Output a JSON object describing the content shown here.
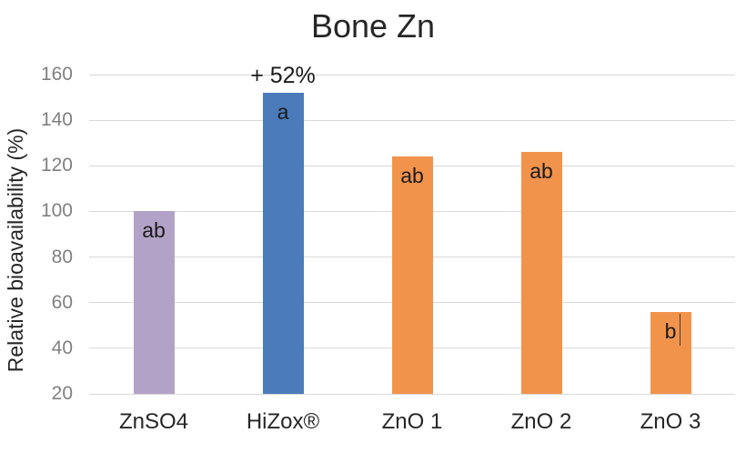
{
  "chart_data": {
    "type": "bar",
    "title": "Bone Zn",
    "xlabel": "",
    "ylabel": "Relative bioavailability (%)",
    "categories": [
      "ZnSO4",
      "HiZox®",
      "ZnO 1",
      "ZnO 2",
      "ZnO 3"
    ],
    "values": [
      100,
      152,
      124,
      126,
      56
    ],
    "bar_colors": [
      "#b3a2c7",
      "#4b7bba",
      "#f2934c",
      "#f2934c",
      "#f2934c"
    ],
    "significance_letters": [
      "ab",
      "a",
      "ab",
      "ab",
      "b"
    ],
    "annotations": [
      {
        "target": "HiZox®",
        "text": "+ 52%",
        "position": "above-bar"
      }
    ],
    "text_cursor_artifact": {
      "target": "ZnO 3",
      "visible": true
    },
    "ylim": [
      20,
      160
    ],
    "yticks": [
      20,
      40,
      60,
      80,
      100,
      120,
      140,
      160
    ],
    "grid": true,
    "legend": false,
    "plot_background": "#ffffff"
  },
  "style": {
    "background": "#ffffff",
    "gridline_color": "#d9d9d9",
    "tick_label_color": "#808080",
    "text_color": "#262626",
    "letter_color": "#1a1a1a"
  }
}
